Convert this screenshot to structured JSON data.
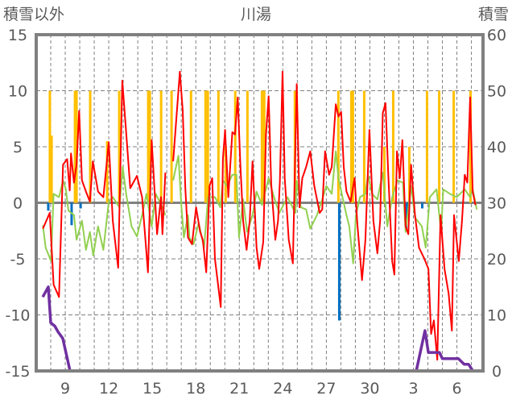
{
  "chart_data": {
    "type": "line",
    "title": "川湯",
    "left_axis_label": "積雪以外",
    "right_axis_label": "積雪",
    "left_ylim": [
      -15,
      15
    ],
    "left_ticks": [
      "15",
      "10",
      "5",
      "0",
      "-5",
      "-10",
      "-15"
    ],
    "right_ylim": [
      0,
      60
    ],
    "right_ticks": [
      "60",
      "50",
      "40",
      "30",
      "20",
      "10",
      "0"
    ],
    "xlim": [
      7,
      37.8
    ],
    "x_ticks": [
      {
        "day": 9,
        "label": "9"
      },
      {
        "day": 12,
        "label": "12"
      },
      {
        "day": 15,
        "label": "15"
      },
      {
        "day": 18,
        "label": "18"
      },
      {
        "day": 21,
        "label": "21"
      },
      {
        "day": 24,
        "label": "24"
      },
      {
        "day": 27,
        "label": "27"
      },
      {
        "day": 30,
        "label": "30"
      },
      {
        "day": 33,
        "label": "3"
      },
      {
        "day": 36,
        "label": "6"
      }
    ],
    "grid": true,
    "colors": {
      "temperature": "#ff0000",
      "green_series": "#92d050",
      "snowfall_bars": "#ffc000",
      "negative_bars": "#0070c0",
      "snow_depth": "#7030a0",
      "frame": "#808080"
    },
    "series": [
      {
        "name": "temperature",
        "axis": "left",
        "points": [
          [
            7.46,
            -2.3
          ],
          [
            7.93,
            -0.9
          ],
          [
            8.2,
            -7.3
          ],
          [
            8.57,
            -8.4
          ],
          [
            8.85,
            3.4
          ],
          [
            9.13,
            3.9
          ],
          [
            9.31,
            1.1
          ],
          [
            9.4,
            4.4
          ],
          [
            9.6,
            1.8
          ],
          [
            9.78,
            3.4
          ],
          [
            9.96,
            8.2
          ],
          [
            10.15,
            2
          ],
          [
            10.43,
            1
          ],
          [
            10.7,
            0.1
          ],
          [
            10.9,
            3.7
          ],
          [
            11.26,
            1
          ],
          [
            11.63,
            0.5
          ],
          [
            12,
            5.4
          ],
          [
            12.28,
            -1.6
          ],
          [
            12.65,
            -5.8
          ],
          [
            12.93,
            10.9
          ],
          [
            13.2,
            6.3
          ],
          [
            13.48,
            1.3
          ],
          [
            13.94,
            2.4
          ],
          [
            14.3,
            0.5
          ],
          [
            14.7,
            -6.2
          ],
          [
            14.96,
            5.6
          ],
          [
            15.33,
            -2.8
          ],
          [
            15.6,
            0.5
          ],
          [
            15.7,
            -2.8
          ],
          [
            15.9,
            2.7
          ],
          null,
          [
            16.44,
            3.7
          ],
          [
            16.9,
            11.7
          ],
          [
            17.1,
            8.2
          ],
          [
            17.28,
            1.3
          ],
          [
            17.46,
            -3.1
          ],
          [
            17.74,
            -3.7
          ],
          [
            18.02,
            -0.4
          ],
          [
            18.3,
            -2.6
          ],
          [
            18.48,
            -3.3
          ],
          [
            18.72,
            -6.2
          ],
          [
            18.95,
            1.5
          ],
          [
            19.13,
            2.2
          ],
          [
            19.32,
            -5
          ],
          [
            19.5,
            -6.9
          ],
          [
            19.72,
            -9.3
          ],
          [
            19.87,
            3.9
          ],
          [
            20.02,
            6.5
          ],
          [
            20.24,
            0.5
          ],
          [
            20.52,
            6.3
          ],
          [
            20.7,
            6.1
          ],
          [
            20.89,
            9.4
          ],
          [
            21.08,
            3.2
          ],
          [
            21.26,
            -1.6
          ],
          [
            21.5,
            -4.2
          ],
          [
            21.72,
            -1.6
          ],
          [
            21.91,
            3.7
          ],
          [
            22.19,
            -4
          ],
          [
            22.37,
            -5.9
          ],
          [
            22.65,
            -3.5
          ],
          [
            22.84,
            6.1
          ],
          [
            23.02,
            9.5
          ],
          [
            23.2,
            1.7
          ],
          [
            23.48,
            -3.3
          ],
          [
            23.67,
            -1.6
          ],
          [
            23.8,
            2
          ],
          [
            23.98,
            11.7
          ],
          [
            24.13,
            2.2
          ],
          [
            24.41,
            -3.3
          ],
          [
            24.69,
            -5.4
          ],
          [
            24.96,
            10.6
          ],
          [
            25.15,
            -0.4
          ],
          [
            25.34,
            2.2
          ],
          [
            25.61,
            3.2
          ],
          [
            25.89,
            4.6
          ],
          [
            26.17,
            1.5
          ],
          [
            26.54,
            -0.9
          ],
          [
            26.72,
            -0.6
          ],
          [
            26.91,
            4.6
          ],
          [
            27.19,
            2.5
          ],
          [
            27.37,
            3.2
          ],
          [
            27.65,
            8.8
          ],
          [
            27.84,
            7.7
          ],
          [
            28.02,
            8.1
          ],
          [
            28.2,
            3.2
          ],
          [
            28.39,
            1
          ],
          [
            28.67,
            0.1
          ],
          [
            28.95,
            2.2
          ],
          [
            29.13,
            -1.8
          ],
          [
            29.46,
            -6.9
          ],
          [
            29.69,
            -3.3
          ],
          [
            29.97,
            6.5
          ],
          [
            30.24,
            -1.6
          ],
          [
            30.52,
            -4.5
          ],
          [
            30.71,
            -1.6
          ],
          [
            30.89,
            8
          ],
          [
            31.08,
            8.9
          ],
          [
            31.26,
            2.7
          ],
          [
            31.54,
            -5.2
          ],
          [
            31.69,
            -6.4
          ],
          [
            31.87,
            4.6
          ],
          [
            32.06,
            2.2
          ],
          [
            32.24,
            5.6
          ],
          [
            32.46,
            -2.1
          ],
          [
            32.65,
            -2.8
          ],
          [
            32.84,
            3.4
          ],
          [
            33.11,
            -1.1
          ],
          [
            33.39,
            -4
          ],
          [
            33.76,
            -5
          ],
          [
            34.04,
            -5.9
          ],
          [
            34.22,
            -11.7
          ],
          [
            34.41,
            -10.5
          ],
          [
            34.65,
            -14
          ],
          [
            34.87,
            -1.1
          ],
          [
            35.15,
            -5.9
          ],
          [
            35.43,
            -8.1
          ],
          [
            35.65,
            -11.4
          ],
          [
            35.8,
            -1.1
          ],
          [
            36.13,
            -5.2
          ],
          [
            36.35,
            -1.6
          ],
          [
            36.54,
            2.5
          ],
          [
            36.72,
            1.8
          ],
          [
            36.91,
            9.4
          ],
          [
            37.09,
            1
          ],
          [
            37.28,
            -0.2
          ]
        ]
      },
      {
        "name": "green_series",
        "axis": "left",
        "points": [
          [
            7.46,
            -2
          ],
          [
            7.65,
            -4
          ],
          [
            8.02,
            -5.2
          ],
          [
            8.2,
            0.8
          ],
          [
            8.57,
            0.5
          ],
          [
            8.85,
            2
          ],
          [
            9.04,
            1.2
          ],
          [
            9.22,
            -0.7
          ],
          [
            9.6,
            -1.1
          ],
          [
            9.78,
            -3.3
          ],
          [
            10.15,
            -1.6
          ],
          [
            10.43,
            -4.2
          ],
          [
            10.7,
            -2.6
          ],
          [
            10.93,
            -4.7
          ],
          [
            11.26,
            -2.1
          ],
          [
            11.63,
            -4.2
          ],
          [
            12,
            0.1
          ],
          [
            12.28,
            0.5
          ],
          [
            12.74,
            -0.4
          ],
          [
            12.96,
            3.2
          ],
          [
            13.2,
            0.8
          ],
          [
            13.57,
            -2.1
          ],
          [
            13.94,
            -3
          ],
          [
            14.3,
            -1.1
          ],
          [
            14.6,
            0.8
          ],
          [
            14.96,
            -2.1
          ],
          [
            15.24,
            0.8
          ],
          [
            15.7,
            -0.4
          ],
          [
            15.9,
            -1.1
          ],
          null,
          [
            16.44,
            2
          ],
          [
            16.8,
            4.2
          ],
          [
            17,
            -0.2
          ],
          [
            17.18,
            -3.1
          ],
          [
            17.46,
            -1.1
          ],
          [
            17.56,
            -3.1
          ],
          [
            17.84,
            -3.7
          ],
          [
            18.2,
            -1.8
          ],
          [
            18.57,
            -4
          ],
          [
            18.85,
            0.5
          ],
          [
            19.32,
            0.5
          ],
          [
            19.69,
            -0.4
          ],
          [
            19.87,
            2
          ],
          [
            20.15,
            1.5
          ],
          [
            20.52,
            2.5
          ],
          [
            20.8,
            2.5
          ],
          [
            20.98,
            -3.1
          ],
          [
            21.26,
            0.3
          ],
          [
            21.54,
            -2.6
          ],
          [
            21.91,
            -1.1
          ],
          [
            22.19,
            1
          ],
          [
            22.56,
            -0.2
          ],
          [
            23.02,
            2.2
          ],
          [
            23.39,
            0.5
          ],
          [
            23.76,
            -0.9
          ],
          [
            24.32,
            0.5
          ],
          [
            24.87,
            -0.9
          ],
          [
            24.96,
            2
          ],
          [
            25.24,
            -0.4
          ],
          [
            25.61,
            -0.6
          ],
          [
            25.89,
            -2.3
          ],
          [
            26.35,
            -1.1
          ],
          [
            26.72,
            0.3
          ],
          [
            27,
            1.5
          ],
          [
            27.37,
            0.8
          ],
          [
            27.65,
            4.6
          ],
          [
            27.84,
            2.2
          ],
          [
            28.11,
            0.5
          ],
          [
            28.39,
            -1.1
          ],
          [
            28.58,
            -2.1
          ],
          [
            28.85,
            -5.4
          ],
          [
            29.04,
            -1.1
          ],
          [
            29.32,
            0.5
          ],
          [
            29.69,
            0.8
          ],
          [
            29.87,
            2.5
          ],
          [
            30.15,
            0.8
          ],
          [
            30.52,
            0.3
          ],
          [
            30.89,
            2.7
          ],
          [
            31.2,
            -2.1
          ],
          [
            31.54,
            0.5
          ],
          [
            31.91,
            2
          ],
          [
            32.28,
            1.8
          ],
          [
            32.46,
            -2.6
          ],
          [
            32.84,
            1.5
          ],
          [
            33.11,
            -1.3
          ],
          [
            33.58,
            -2.1
          ],
          [
            33.85,
            -4
          ],
          [
            34.13,
            0.5
          ],
          [
            34.6,
            1.2
          ],
          [
            34.91,
            -2.6
          ],
          [
            35.06,
            1.2
          ],
          [
            35.52,
            0.8
          ],
          [
            35.98,
            0.5
          ],
          [
            36.54,
            1.2
          ],
          [
            36.91,
            0.5
          ],
          [
            37.09,
            1.2
          ],
          [
            37.37,
            -0.6
          ]
        ]
      },
      {
        "name": "snow_depth",
        "axis": "right",
        "points": [
          [
            7.45,
            13.2
          ],
          [
            7.83,
            15
          ],
          [
            8,
            8.6
          ],
          [
            8.28,
            8
          ],
          [
            8.5,
            7
          ],
          [
            8.83,
            5.8
          ],
          [
            9.33,
            0
          ],
          [
            33.2,
            0
          ],
          [
            33.8,
            7.2
          ],
          [
            34.03,
            3.3
          ],
          [
            34.8,
            3.3
          ],
          [
            35,
            2.2
          ],
          [
            36.1,
            2.2
          ],
          [
            36.5,
            1.2
          ],
          [
            36.8,
            1.2
          ],
          [
            37.1,
            0
          ],
          [
            37.8,
            0
          ]
        ]
      }
    ],
    "bars": [
      {
        "name": "snowfall",
        "axis": "left",
        "color": "orange",
        "values": [
          [
            7.94,
            10
          ],
          [
            8.06,
            6
          ],
          [
            9.67,
            10
          ],
          [
            9.78,
            10
          ],
          [
            10.72,
            10
          ],
          [
            11.89,
            5.5
          ],
          [
            12.72,
            10
          ],
          [
            14.72,
            10
          ],
          [
            14.83,
            10
          ],
          [
            15.61,
            10
          ],
          [
            16.33,
            10
          ],
          [
            17.67,
            10
          ],
          [
            18.67,
            10
          ],
          [
            18.83,
            10
          ],
          [
            19.56,
            10
          ],
          [
            20.06,
            5
          ],
          [
            20.72,
            10
          ],
          [
            21.56,
            10
          ],
          [
            22.56,
            10
          ],
          [
            22.72,
            10
          ],
          [
            24.83,
            10
          ],
          [
            27.83,
            10
          ],
          [
            28.72,
            10
          ],
          [
            28.83,
            10
          ],
          [
            29.61,
            10
          ],
          [
            31,
            5
          ],
          [
            31.61,
            10
          ],
          [
            32.72,
            5
          ],
          [
            33.94,
            10
          ],
          [
            34.78,
            10
          ],
          [
            35.78,
            10
          ],
          [
            36.94,
            10
          ]
        ]
      },
      {
        "name": "negative",
        "axis": "left",
        "color": "blue",
        "values": [
          [
            7.83,
            -0.7
          ],
          [
            9.44,
            -2
          ],
          [
            10.06,
            -0.5
          ],
          [
            27.89,
            -10.5
          ],
          [
            32.5,
            -2.5
          ],
          [
            32.6,
            -1.2
          ],
          [
            33.61,
            -0.5
          ]
        ]
      }
    ]
  }
}
